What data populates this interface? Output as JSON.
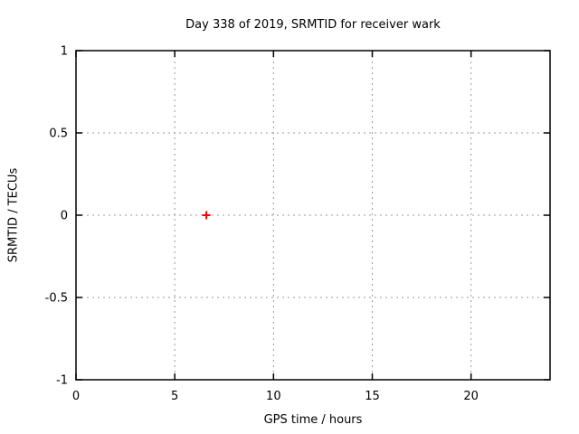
{
  "figure": {
    "background": "#ffffff",
    "text_color": "#000000"
  },
  "chart_data": {
    "type": "scatter",
    "title": "Day 338 of 2019, SRMTID for receiver wark",
    "xlabel": "GPS time / hours",
    "ylabel": "SRMTID / TECUs",
    "xlim": [
      0,
      24
    ],
    "ylim": [
      -1,
      1
    ],
    "xticks": [
      0,
      5,
      10,
      15,
      20
    ],
    "xtick_labels": [
      "0",
      "5",
      "10",
      "15",
      "20"
    ],
    "yticks": [
      -1,
      -0.5,
      0,
      0.5,
      1
    ],
    "ytick_labels": [
      "-1",
      "-0.5",
      "0",
      "0.5",
      "1"
    ],
    "grid": true,
    "grid_color": "#999999",
    "axis_color": "#000000",
    "legend": "none",
    "series": [
      {
        "name": "SRMTID",
        "marker": "plus",
        "color": "#ff0000",
        "points": [
          {
            "x": 6.6,
            "y": 0.0
          }
        ]
      }
    ]
  }
}
